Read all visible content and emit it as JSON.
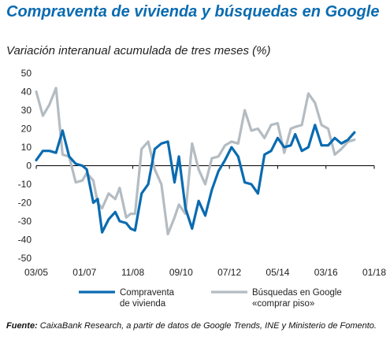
{
  "title": "Compraventa de vivienda y búsquedas en Google",
  "subtitle": "Variación interanual acumulada de tres meses (%)",
  "source_label": "Fuente:",
  "source_text": " CaixaBank Research, a partir de datos de Google Trends, INE y Ministerio de Fomento.",
  "colors": {
    "compraventa": "#0a6bb0",
    "busquedas": "#b4bcc2",
    "zero_line": "#000000",
    "grid": "#cccccc"
  },
  "chart_data": {
    "type": "line",
    "title": "Compraventa de vivienda y búsquedas en Google",
    "ylim": [
      -50,
      50
    ],
    "yticks": [
      -50,
      -40,
      -30,
      -20,
      -10,
      0,
      10,
      20,
      30,
      40,
      50
    ],
    "xlim": [
      "03/05",
      "01/18"
    ],
    "xtick_labels": [
      "03/05",
      "01/07",
      "11/08",
      "09/10",
      "07/12",
      "05/14",
      "03/16",
      "01/18"
    ],
    "legend_position": "bottom",
    "series": [
      {
        "name": "Compraventa de vivienda",
        "label_lines": [
          "Compraventa",
          "de vivienda"
        ],
        "color": "#0a6bb0",
        "points": [
          [
            "03/05",
            3
          ],
          [
            "06/05",
            8
          ],
          [
            "09/05",
            8
          ],
          [
            "12/05",
            7
          ],
          [
            "03/06",
            19
          ],
          [
            "06/06",
            5
          ],
          [
            "09/06",
            1
          ],
          [
            "12/06",
            0
          ],
          [
            "02/07",
            -2
          ],
          [
            "05/07",
            -20
          ],
          [
            "07/07",
            -18
          ],
          [
            "09/07",
            -36
          ],
          [
            "12/07",
            -29
          ],
          [
            "03/08",
            -25
          ],
          [
            "05/08",
            -30
          ],
          [
            "08/08",
            -31
          ],
          [
            "10/08",
            -34
          ],
          [
            "12/08",
            -35
          ],
          [
            "03/09",
            -15
          ],
          [
            "06/09",
            -10
          ],
          [
            "09/09",
            9
          ],
          [
            "12/09",
            12
          ],
          [
            "03/10",
            13
          ],
          [
            "06/10",
            -9
          ],
          [
            "08/10",
            5
          ],
          [
            "11/10",
            -23
          ],
          [
            "02/11",
            -34
          ],
          [
            "05/11",
            -19
          ],
          [
            "08/11",
            -27
          ],
          [
            "11/11",
            -13
          ],
          [
            "02/12",
            -3
          ],
          [
            "05/12",
            3
          ],
          [
            "08/12",
            10
          ],
          [
            "11/12",
            5
          ],
          [
            "02/13",
            -9
          ],
          [
            "05/13",
            -10
          ],
          [
            "08/13",
            -15
          ],
          [
            "11/13",
            6
          ],
          [
            "02/14",
            8
          ],
          [
            "05/14",
            15
          ],
          [
            "08/14",
            10
          ],
          [
            "11/14",
            11
          ],
          [
            "01/15",
            17
          ],
          [
            "04/15",
            8
          ],
          [
            "07/15",
            10
          ],
          [
            "10/15",
            22
          ],
          [
            "01/16",
            11
          ],
          [
            "04/16",
            11
          ],
          [
            "07/16",
            15
          ],
          [
            "10/16",
            12
          ],
          [
            "01/17",
            14
          ],
          [
            "04/17",
            18
          ]
        ]
      },
      {
        "name": "Búsquedas en Google «comprar piso»",
        "label_lines": [
          "Búsquedas en Google",
          "«comprar piso»"
        ],
        "color": "#b4bcc2",
        "points": [
          [
            "03/05",
            40
          ],
          [
            "06/05",
            27
          ],
          [
            "09/05",
            33
          ],
          [
            "12/05",
            42
          ],
          [
            "03/06",
            6
          ],
          [
            "06/06",
            5
          ],
          [
            "09/06",
            -9
          ],
          [
            "12/06",
            -8
          ],
          [
            "02/07",
            -4
          ],
          [
            "05/07",
            -8
          ],
          [
            "07/07",
            -20
          ],
          [
            "09/07",
            -23
          ],
          [
            "12/07",
            -15
          ],
          [
            "03/08",
            -18
          ],
          [
            "05/08",
            -12
          ],
          [
            "08/08",
            -28
          ],
          [
            "10/08",
            -26
          ],
          [
            "12/08",
            -26
          ],
          [
            "03/09",
            9
          ],
          [
            "06/09",
            13
          ],
          [
            "09/09",
            -2
          ],
          [
            "12/09",
            -10
          ],
          [
            "03/10",
            -37
          ],
          [
            "06/10",
            -28
          ],
          [
            "08/10",
            -21
          ],
          [
            "11/10",
            -26
          ],
          [
            "02/11",
            12
          ],
          [
            "05/11",
            -2
          ],
          [
            "08/11",
            -10
          ],
          [
            "11/11",
            4
          ],
          [
            "02/12",
            5
          ],
          [
            "05/12",
            11
          ],
          [
            "08/12",
            13
          ],
          [
            "11/12",
            12
          ],
          [
            "02/13",
            30
          ],
          [
            "05/13",
            19
          ],
          [
            "08/13",
            20
          ],
          [
            "11/13",
            15
          ],
          [
            "02/14",
            22
          ],
          [
            "05/14",
            23
          ],
          [
            "08/14",
            7
          ],
          [
            "11/14",
            20
          ],
          [
            "01/15",
            21
          ],
          [
            "04/15",
            22
          ],
          [
            "07/15",
            39
          ],
          [
            "10/15",
            34
          ],
          [
            "01/16",
            22
          ],
          [
            "04/16",
            20
          ],
          [
            "07/16",
            6
          ],
          [
            "10/16",
            9
          ],
          [
            "01/17",
            13
          ],
          [
            "04/17",
            14
          ]
        ]
      }
    ]
  }
}
